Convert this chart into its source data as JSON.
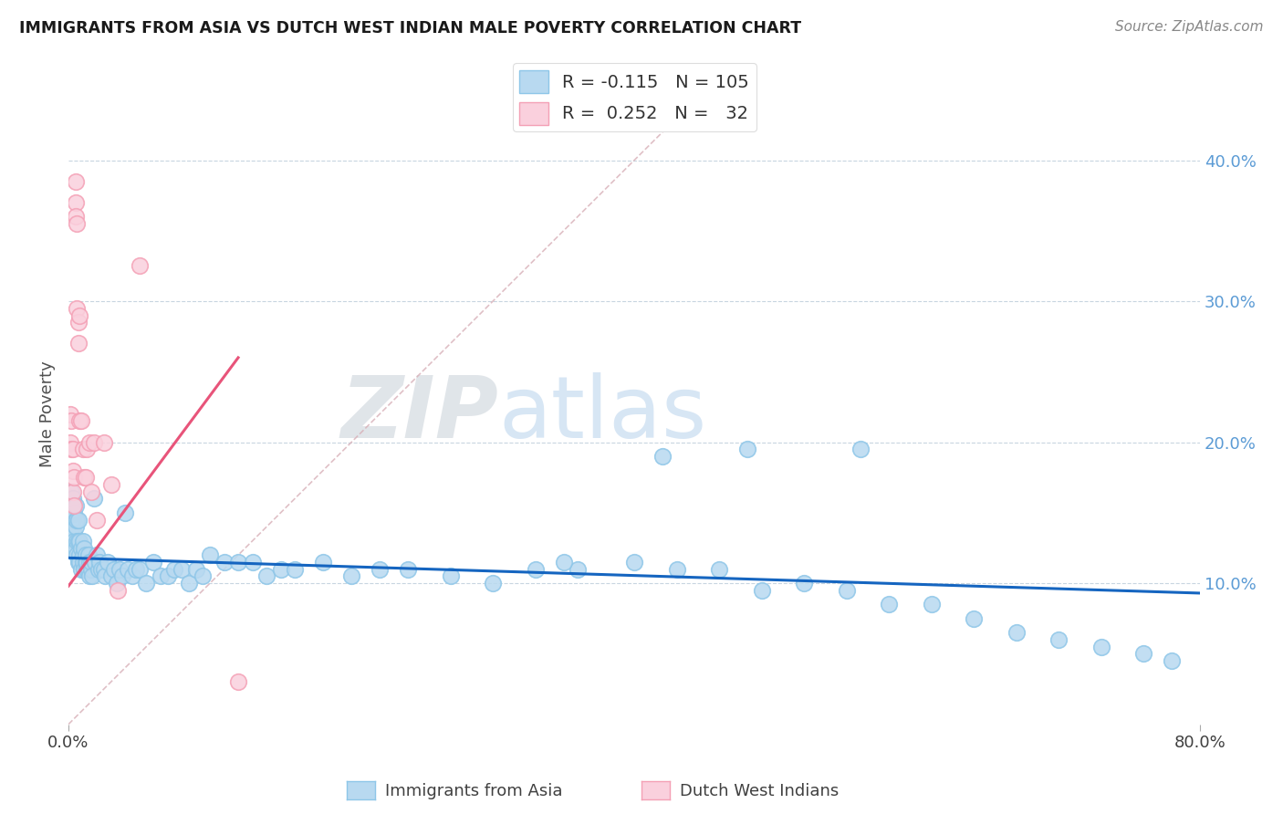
{
  "title": "IMMIGRANTS FROM ASIA VS DUTCH WEST INDIAN MALE POVERTY CORRELATION CHART",
  "source": "Source: ZipAtlas.com",
  "ylabel": "Male Poverty",
  "xlim": [
    0.0,
    0.8
  ],
  "ylim": [
    0.0,
    0.44
  ],
  "watermark": "ZIPatlas",
  "legend_R1": "R = -0.115",
  "legend_N1": "N = 105",
  "legend_R2": "R =  0.252",
  "legend_N2": "N =   32",
  "color_asia": "#8ec6e8",
  "color_asia_fill": "#b8d9f0",
  "color_asia_line": "#1565c0",
  "color_dutch": "#f4a0b5",
  "color_dutch_fill": "#fad0dd",
  "color_dutch_line": "#e8547a",
  "color_diagonal": "#d8b0b8",
  "background": "#ffffff",
  "asia_scatter_x": [
    0.001,
    0.001,
    0.002,
    0.002,
    0.002,
    0.002,
    0.003,
    0.003,
    0.003,
    0.003,
    0.004,
    0.004,
    0.004,
    0.005,
    0.005,
    0.005,
    0.005,
    0.006,
    0.006,
    0.006,
    0.007,
    0.007,
    0.007,
    0.008,
    0.008,
    0.008,
    0.009,
    0.009,
    0.01,
    0.01,
    0.01,
    0.011,
    0.011,
    0.012,
    0.012,
    0.013,
    0.013,
    0.014,
    0.014,
    0.015,
    0.015,
    0.016,
    0.016,
    0.017,
    0.018,
    0.019,
    0.02,
    0.021,
    0.022,
    0.023,
    0.025,
    0.026,
    0.028,
    0.03,
    0.032,
    0.034,
    0.036,
    0.038,
    0.04,
    0.042,
    0.045,
    0.048,
    0.05,
    0.055,
    0.06,
    0.065,
    0.07,
    0.075,
    0.08,
    0.085,
    0.09,
    0.095,
    0.1,
    0.11,
    0.12,
    0.13,
    0.14,
    0.15,
    0.16,
    0.18,
    0.2,
    0.22,
    0.24,
    0.27,
    0.3,
    0.33,
    0.36,
    0.4,
    0.43,
    0.46,
    0.49,
    0.52,
    0.55,
    0.58,
    0.61,
    0.64,
    0.67,
    0.7,
    0.73,
    0.76,
    0.78,
    0.35,
    0.42,
    0.48,
    0.56
  ],
  "asia_scatter_y": [
    0.16,
    0.155,
    0.15,
    0.145,
    0.135,
    0.165,
    0.14,
    0.155,
    0.145,
    0.16,
    0.135,
    0.15,
    0.13,
    0.145,
    0.125,
    0.155,
    0.14,
    0.13,
    0.145,
    0.12,
    0.13,
    0.115,
    0.145,
    0.13,
    0.12,
    0.115,
    0.125,
    0.11,
    0.13,
    0.12,
    0.115,
    0.125,
    0.11,
    0.115,
    0.12,
    0.11,
    0.115,
    0.12,
    0.11,
    0.115,
    0.105,
    0.11,
    0.115,
    0.105,
    0.16,
    0.115,
    0.12,
    0.11,
    0.115,
    0.11,
    0.11,
    0.105,
    0.115,
    0.105,
    0.11,
    0.1,
    0.11,
    0.105,
    0.15,
    0.11,
    0.105,
    0.11,
    0.11,
    0.1,
    0.115,
    0.105,
    0.105,
    0.11,
    0.11,
    0.1,
    0.11,
    0.105,
    0.12,
    0.115,
    0.115,
    0.115,
    0.105,
    0.11,
    0.11,
    0.115,
    0.105,
    0.11,
    0.11,
    0.105,
    0.1,
    0.11,
    0.11,
    0.115,
    0.11,
    0.11,
    0.095,
    0.1,
    0.095,
    0.085,
    0.085,
    0.075,
    0.065,
    0.06,
    0.055,
    0.05,
    0.045,
    0.115,
    0.19,
    0.195,
    0.195
  ],
  "dutch_scatter_x": [
    0.001,
    0.001,
    0.002,
    0.002,
    0.003,
    0.003,
    0.003,
    0.004,
    0.004,
    0.005,
    0.005,
    0.005,
    0.006,
    0.006,
    0.007,
    0.007,
    0.008,
    0.008,
    0.009,
    0.01,
    0.011,
    0.012,
    0.013,
    0.015,
    0.016,
    0.018,
    0.02,
    0.025,
    0.03,
    0.035,
    0.05,
    0.12
  ],
  "dutch_scatter_y": [
    0.22,
    0.2,
    0.195,
    0.215,
    0.18,
    0.165,
    0.195,
    0.155,
    0.175,
    0.385,
    0.37,
    0.36,
    0.355,
    0.295,
    0.285,
    0.27,
    0.29,
    0.215,
    0.215,
    0.195,
    0.175,
    0.175,
    0.195,
    0.2,
    0.165,
    0.2,
    0.145,
    0.2,
    0.17,
    0.095,
    0.325,
    0.03
  ],
  "asia_line_x0": 0.0,
  "asia_line_x1": 0.8,
  "asia_line_y0": 0.118,
  "asia_line_y1": 0.093,
  "dutch_line_x0": 0.0,
  "dutch_line_x1": 0.12,
  "dutch_line_y0": 0.098,
  "dutch_line_y1": 0.26
}
